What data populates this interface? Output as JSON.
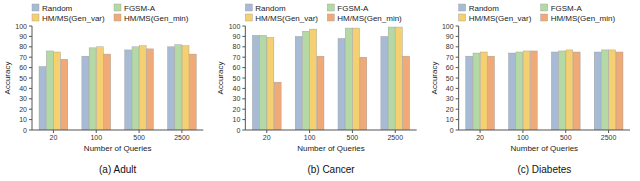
{
  "chart_data": [
    {
      "type": "bar",
      "title": "(a) Adult",
      "x_label": "Number of Queries",
      "y_label": "Accuracy",
      "categories": [
        "20",
        "100",
        "500",
        "2500"
      ],
      "series": [
        {
          "name": "Random",
          "color": "#a8bbd4",
          "values": [
            61,
            71,
            77,
            80
          ]
        },
        {
          "name": "FGSM-A",
          "color": "#b5d9a5",
          "values": [
            76,
            79,
            80,
            82
          ]
        },
        {
          "name": "HM/MS(Gen_var)",
          "color": "#f5d070",
          "values": [
            75,
            80,
            81,
            81
          ]
        },
        {
          "name": "HM/MS(Gen_min)",
          "color": "#f0aa78",
          "values": [
            68,
            73,
            78,
            73
          ]
        }
      ],
      "ylim": [
        0,
        100
      ],
      "yticks": [
        0,
        10,
        20,
        30,
        40,
        50,
        60,
        70,
        80,
        90,
        100
      ],
      "grid": false,
      "legend": "upper left"
    },
    {
      "type": "bar",
      "title": "(b) Cancer",
      "x_label": "Number of Queries",
      "y_label": "Accuracy",
      "categories": [
        "20",
        "100",
        "500",
        "2500"
      ],
      "series": [
        {
          "name": "Random",
          "color": "#a8bbd4",
          "values": [
            91,
            90,
            88,
            90
          ]
        },
        {
          "name": "FGSM-A",
          "color": "#b5d9a5",
          "values": [
            91,
            95,
            98,
            99
          ]
        },
        {
          "name": "HM/MS(Gen_var)",
          "color": "#f5d070",
          "values": [
            89,
            97,
            98,
            99
          ]
        },
        {
          "name": "HM/MS(Gen_min)",
          "color": "#f0aa78",
          "values": [
            46,
            71,
            70,
            71
          ]
        }
      ],
      "ylim": [
        0,
        100
      ],
      "yticks": [
        0,
        10,
        20,
        30,
        40,
        50,
        60,
        70,
        80,
        90,
        100
      ],
      "grid": false,
      "legend": "upper left"
    },
    {
      "type": "bar",
      "title": "(c) Diabetes",
      "x_label": "Number of Queries",
      "y_label": "Accuracy",
      "categories": [
        "20",
        "100",
        "500",
        "2500"
      ],
      "series": [
        {
          "name": "Random",
          "color": "#a8bbd4",
          "values": [
            71,
            74,
            75,
            75
          ]
        },
        {
          "name": "FGSM-A",
          "color": "#b5d9a5",
          "values": [
            74,
            75,
            76,
            77
          ]
        },
        {
          "name": "HM/MS(Gen_var)",
          "color": "#f5d070",
          "values": [
            75,
            76,
            77,
            77
          ]
        },
        {
          "name": "HM/MS(Gen_min)",
          "color": "#f0aa78",
          "values": [
            71,
            76,
            75,
            75
          ]
        }
      ],
      "ylim": [
        0,
        100
      ],
      "yticks": [
        0,
        10,
        20,
        30,
        40,
        50,
        60,
        70,
        80,
        90,
        100
      ],
      "grid": false,
      "legend": "upper left"
    }
  ]
}
